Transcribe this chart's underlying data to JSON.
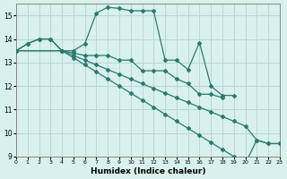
{
  "xlabel": "Humidex (Indice chaleur)",
  "xlim": [
    0,
    23
  ],
  "ylim": [
    9,
    15.5
  ],
  "yticks": [
    9,
    10,
    11,
    12,
    13,
    14,
    15
  ],
  "xticks": [
    0,
    1,
    2,
    3,
    4,
    5,
    6,
    7,
    8,
    9,
    10,
    11,
    12,
    13,
    14,
    15,
    16,
    17,
    18,
    19,
    20,
    21,
    22,
    23
  ],
  "bg_color": "#d8f0ee",
  "grid_color": "#b8d8d4",
  "line_color": "#2a7a70",
  "line1_x": [
    0,
    1,
    2,
    3,
    4,
    5,
    6,
    7,
    8,
    9,
    10,
    11,
    12,
    13,
    14,
    15,
    16,
    17,
    18,
    19
  ],
  "line1_y": [
    13.5,
    13.8,
    14.0,
    14.0,
    13.5,
    13.5,
    13.8,
    15.1,
    15.35,
    15.3,
    15.2,
    15.2,
    15.2,
    13.1,
    13.1,
    12.7,
    13.85,
    12.0,
    11.6,
    11.6
  ],
  "line2_x": [
    0,
    1,
    2,
    3,
    4,
    5,
    6,
    7,
    8,
    9,
    10,
    11,
    12,
    13,
    14,
    15,
    16,
    17,
    18
  ],
  "line2_y": [
    13.5,
    13.8,
    14.0,
    14.0,
    13.5,
    13.4,
    13.3,
    13.3,
    13.3,
    13.1,
    13.1,
    12.65,
    12.65,
    12.65,
    12.3,
    12.1,
    11.65,
    11.65,
    11.5
  ],
  "line3_x": [
    0,
    4,
    5,
    6,
    7,
    8,
    9,
    10,
    11,
    12,
    13,
    14,
    15,
    16,
    17,
    18,
    19,
    20,
    21,
    22,
    23
  ],
  "line3_y": [
    13.5,
    13.5,
    13.3,
    13.1,
    12.9,
    12.7,
    12.5,
    12.3,
    12.1,
    11.9,
    11.7,
    11.5,
    11.3,
    11.1,
    10.9,
    10.7,
    10.5,
    10.3,
    9.7,
    9.55,
    9.55
  ],
  "line4_x": [
    0,
    4,
    5,
    6,
    7,
    8,
    9,
    10,
    11,
    12,
    13,
    14,
    15,
    16,
    17,
    18,
    19,
    20,
    21,
    22,
    23
  ],
  "line4_y": [
    13.5,
    13.5,
    13.2,
    12.9,
    12.6,
    12.3,
    12.0,
    11.7,
    11.4,
    11.1,
    10.8,
    10.5,
    10.2,
    9.9,
    9.6,
    9.3,
    9.0,
    8.7,
    9.7,
    9.55,
    9.55
  ]
}
